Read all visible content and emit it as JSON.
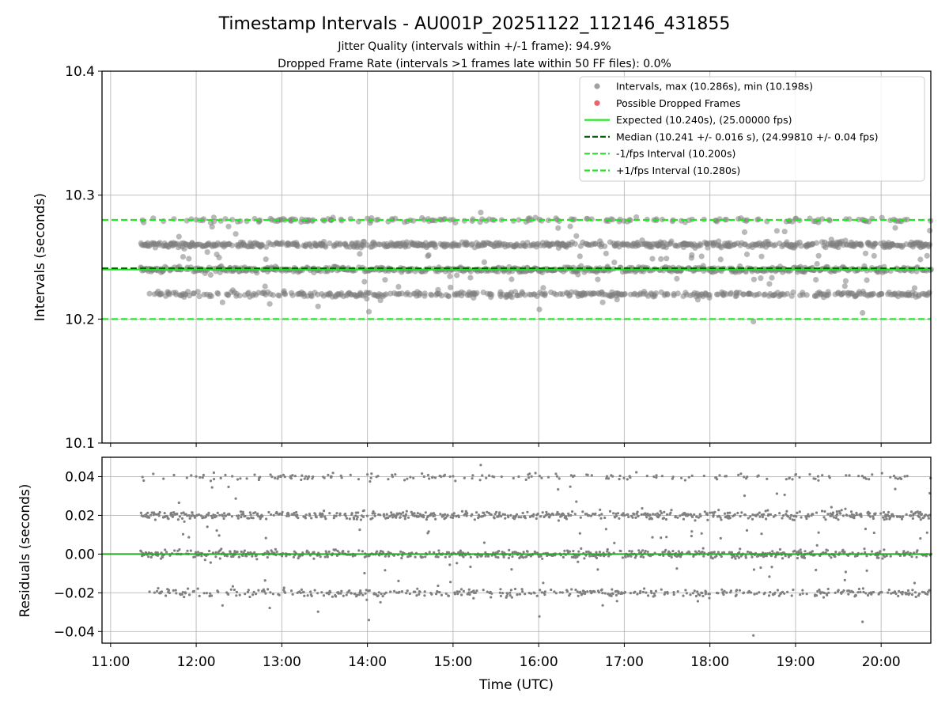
{
  "title": "Timestamp Intervals - AU001P_20251122_112146_431855",
  "subtitle_1": "Jitter Quality (intervals within +/-1 frame): 94.9%",
  "subtitle_2": "Dropped Frame Rate (intervals >1 frames late within 50 FF files): 0.0%",
  "colors": {
    "points": "#808080",
    "dropped": "#e8242e",
    "expected": "#22e822",
    "median": "#006400",
    "bounds": "#22e822",
    "residual_zero": "#22aa22"
  },
  "chart_data": [
    {
      "type": "scatter",
      "ylabel": "Intervals (seconds)",
      "ylim": [
        10.1,
        10.4
      ],
      "y_ticks": [
        "10.1",
        "10.2",
        "10.3",
        "10.4"
      ],
      "xlim": [
        10.9,
        20.58
      ],
      "grid": true,
      "legend_placement": "top-right",
      "legend": [
        {
          "label": "Intervals, max (10.286s), min (10.198s)",
          "style": "dot",
          "color": "#a0a0a0"
        },
        {
          "label": "Possible Dropped Frames",
          "style": "dot",
          "color": "#e8656a"
        },
        {
          "label": "Expected (10.240s), (25.00000 fps)",
          "style": "solid",
          "color": "#22e822"
        },
        {
          "label": "Median (10.241 +/- 0.016 s), (24.99810 +/- 0.04 fps)",
          "style": "dashed",
          "color": "#006400"
        },
        {
          "label": "-1/fps Interval (10.200s)",
          "style": "dashed",
          "color": "#22e822"
        },
        {
          "label": "+1/fps Interval (10.280s)",
          "style": "dashed",
          "color": "#22e822"
        }
      ],
      "reference_lines": {
        "expected": 10.24,
        "median": 10.241,
        "minus": 10.2,
        "plus": 10.28
      },
      "series": [
        {
          "name": "Intervals",
          "x_range": [
            "11:21",
            "20:35"
          ],
          "clusters": [
            10.22,
            10.24,
            10.26,
            10.28
          ],
          "max": 10.286,
          "min": 10.198
        }
      ]
    },
    {
      "type": "scatter",
      "ylabel": "Residuals (seconds)",
      "xlabel": "Time (UTC)",
      "ylim": [
        -0.046,
        0.05
      ],
      "y_ticks": [
        "−0.04",
        "−0.02",
        "0.00",
        "0.02",
        "0.04"
      ],
      "y_tick_values": [
        -0.04,
        -0.02,
        0.0,
        0.02,
        0.04
      ],
      "x_ticks": [
        "11:00",
        "12:00",
        "13:00",
        "14:00",
        "15:00",
        "16:00",
        "17:00",
        "18:00",
        "19:00",
        "20:00"
      ],
      "x_tick_values": [
        11,
        12,
        13,
        14,
        15,
        16,
        17,
        18,
        19,
        20
      ],
      "grid": true,
      "series": [
        {
          "name": "Residuals",
          "clusters": [
            -0.02,
            0.0,
            0.02,
            0.04
          ],
          "max": 0.046,
          "min": -0.042
        }
      ]
    }
  ]
}
